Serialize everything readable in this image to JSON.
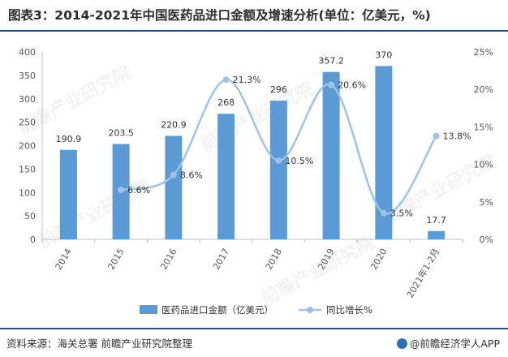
{
  "title": "图表3：2014-2021年中国医药品进口金额及增速分析(单位：亿美元，%)",
  "source": "资料来源：海关总署 前瞻产业研究院整理",
  "brand": "@前瞻经济学人APP",
  "watermark": "前瞻产业研究院",
  "colors": {
    "bar": "#5b9bd5",
    "line": "#9dc3e6",
    "axis": "#bfbfbf",
    "text": "#595959"
  },
  "chart_data": {
    "type": "bar",
    "categories": [
      "2014",
      "2015",
      "2016",
      "2017",
      "2018",
      "2019",
      "2020",
      "2021年1-2月"
    ],
    "series": [
      {
        "name": "医药品进口金额（亿美元）",
        "type": "bar",
        "axis": "left",
        "values": [
          190.9,
          203.5,
          220.9,
          268,
          296,
          357.2,
          370,
          17.7
        ],
        "labels": [
          "190.9",
          "203.5",
          "220.9",
          "268",
          "296",
          "357.2",
          "370",
          "17.7"
        ]
      },
      {
        "name": "同比增长%",
        "type": "line",
        "axis": "right",
        "values": [
          null,
          6.6,
          8.6,
          21.3,
          10.5,
          20.6,
          3.5,
          13.8
        ],
        "labels": [
          null,
          "6.6%",
          "8.6%",
          "21.3%",
          "10.5%",
          "20.6%",
          "3.5%",
          "13.8%"
        ]
      }
    ],
    "y_left": {
      "min": 0,
      "max": 400,
      "ticks": [
        "0",
        "50",
        "100",
        "150",
        "200",
        "250",
        "300",
        "350",
        "400"
      ]
    },
    "y_right": {
      "min": 0,
      "max": 25,
      "ticks": [
        "0%",
        "5%",
        "10%",
        "15%",
        "20%",
        "25%"
      ]
    },
    "legend_position": "bottom",
    "grid": false
  }
}
